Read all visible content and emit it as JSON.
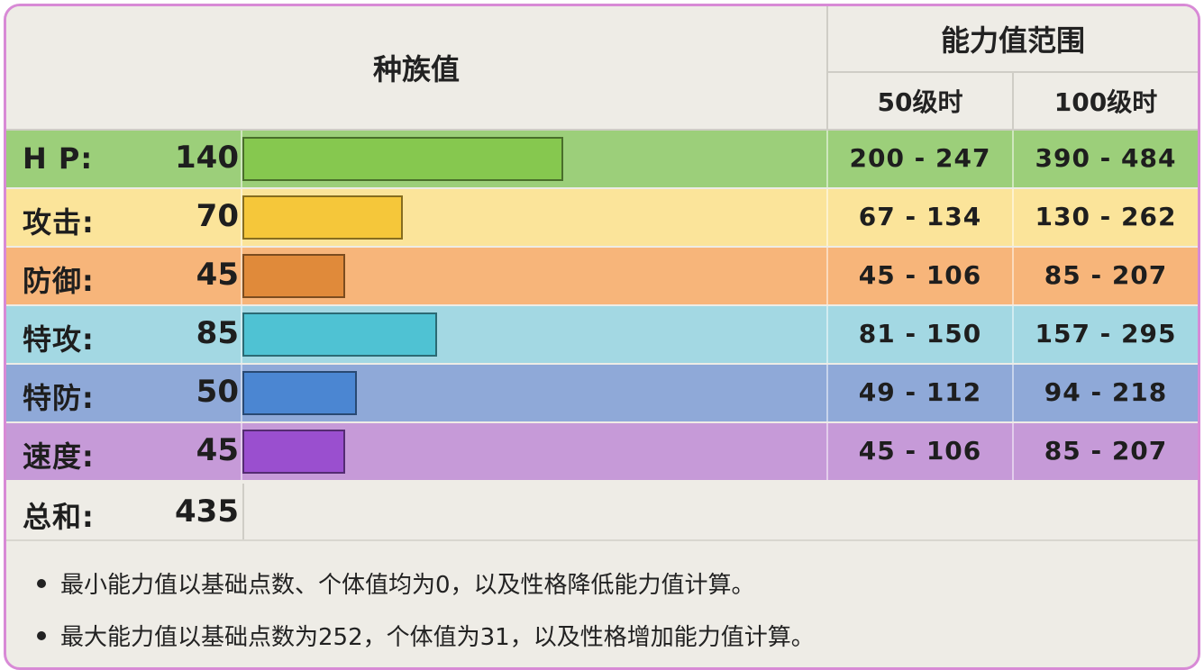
{
  "header": {
    "base_stats_title": "种族值",
    "stat_range_title": "能力值范围",
    "level50": "50级时",
    "level100": "100级时"
  },
  "stats": [
    {
      "label": "H P:",
      "value": "140",
      "base": 140,
      "range50": "200 - 247",
      "range100": "390 - 484",
      "row_color": "#9ccf7a",
      "bar_color": "#86c84f"
    },
    {
      "label": "攻击:",
      "value": "70",
      "base": 70,
      "range50": "67 - 134",
      "range100": "130 - 262",
      "row_color": "#fbe49a",
      "bar_color": "#f5c73a"
    },
    {
      "label": "防御:",
      "value": "45",
      "base": 45,
      "range50": "45 - 106",
      "range100": "85 - 207",
      "row_color": "#f7b57a",
      "bar_color": "#e08a3a"
    },
    {
      "label": "特攻:",
      "value": "85",
      "base": 85,
      "range50": "81 - 150",
      "range100": "157 - 295",
      "row_color": "#a3d8e3",
      "bar_color": "#4fc2d3"
    },
    {
      "label": "特防:",
      "value": "50",
      "base": 50,
      "range50": "49 - 112",
      "range100": "94 - 218",
      "row_color": "#8fa9d8",
      "bar_color": "#4b86d2"
    },
    {
      "label": "速度:",
      "value": "45",
      "base": 45,
      "range50": "45 - 106",
      "range100": "85 - 207",
      "row_color": "#c69ad8",
      "bar_color": "#9a4fcf"
    }
  ],
  "total": {
    "label": "总和:",
    "value": "435"
  },
  "notes": [
    "最小能力值以基础点数、个体值均为0，以及性格降低能力值计算。",
    "最大能力值以基础点数为252，个体值为31，以及性格增加能力值计算。"
  ]
}
